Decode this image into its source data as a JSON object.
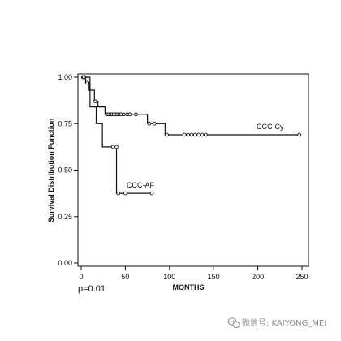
{
  "chart_data": {
    "type": "line",
    "subtype": "kaplan-meier survival curve",
    "xlabel": "MONTHS",
    "ylabel": "Survival Distribution Function",
    "xlim": [
      0,
      250
    ],
    "ylim": [
      0,
      1
    ],
    "x_ticks": [
      0,
      50,
      100,
      150,
      200,
      250
    ],
    "y_ticks": [
      0.0,
      0.25,
      0.5,
      0.75,
      1.0
    ],
    "x_tick_labels": [
      "0",
      "50",
      "100",
      "150",
      "200",
      "250"
    ],
    "y_tick_labels": [
      "0.00",
      "0.25",
      "0.50",
      "0.75",
      "1.00"
    ],
    "grid": false,
    "series": [
      {
        "name": "CCC-Cy",
        "steps": [
          [
            0,
            1.0
          ],
          [
            5,
            0.97
          ],
          [
            9,
            0.93
          ],
          [
            15,
            0.87
          ],
          [
            19,
            0.84
          ],
          [
            27,
            0.8
          ],
          [
            75,
            0.75
          ],
          [
            95,
            0.69
          ],
          [
            247,
            0.69
          ]
        ],
        "censored": [
          [
            2,
            1.0
          ],
          [
            4,
            1.0
          ],
          [
            7,
            0.97
          ],
          [
            16,
            0.87
          ],
          [
            29,
            0.8
          ],
          [
            31,
            0.8
          ],
          [
            33,
            0.8
          ],
          [
            35,
            0.8
          ],
          [
            37,
            0.8
          ],
          [
            39,
            0.8
          ],
          [
            41,
            0.8
          ],
          [
            43,
            0.8
          ],
          [
            45,
            0.8
          ],
          [
            48,
            0.8
          ],
          [
            52,
            0.8
          ],
          [
            55,
            0.8
          ],
          [
            62,
            0.8
          ],
          [
            77,
            0.75
          ],
          [
            83,
            0.75
          ],
          [
            97,
            0.69
          ],
          [
            117,
            0.69
          ],
          [
            121,
            0.69
          ],
          [
            125,
            0.69
          ],
          [
            129,
            0.69
          ],
          [
            133,
            0.69
          ],
          [
            137,
            0.69
          ],
          [
            141,
            0.69
          ],
          [
            247,
            0.69
          ]
        ]
      },
      {
        "name": "CCC-AF",
        "steps": [
          [
            0,
            1.0
          ],
          [
            10,
            0.84
          ],
          [
            17,
            0.75
          ],
          [
            24,
            0.625
          ],
          [
            40,
            0.375
          ],
          [
            80,
            0.375
          ]
        ],
        "censored": [
          [
            3,
            1.0
          ],
          [
            36,
            0.625
          ],
          [
            40,
            0.625
          ],
          [
            42,
            0.375
          ],
          [
            50,
            0.375
          ],
          [
            80,
            0.375
          ]
        ]
      }
    ],
    "annotations": {
      "series_label_1": "CCC-Cy",
      "series_label_2": "CCC-AF",
      "pvalue": "p=0.01"
    }
  },
  "watermark": {
    "text": "微信号: KAIYONG_MEI",
    "icon": "wechat-icon"
  },
  "colors": {
    "line": "#111111",
    "watermark": "#8a8a8a"
  }
}
